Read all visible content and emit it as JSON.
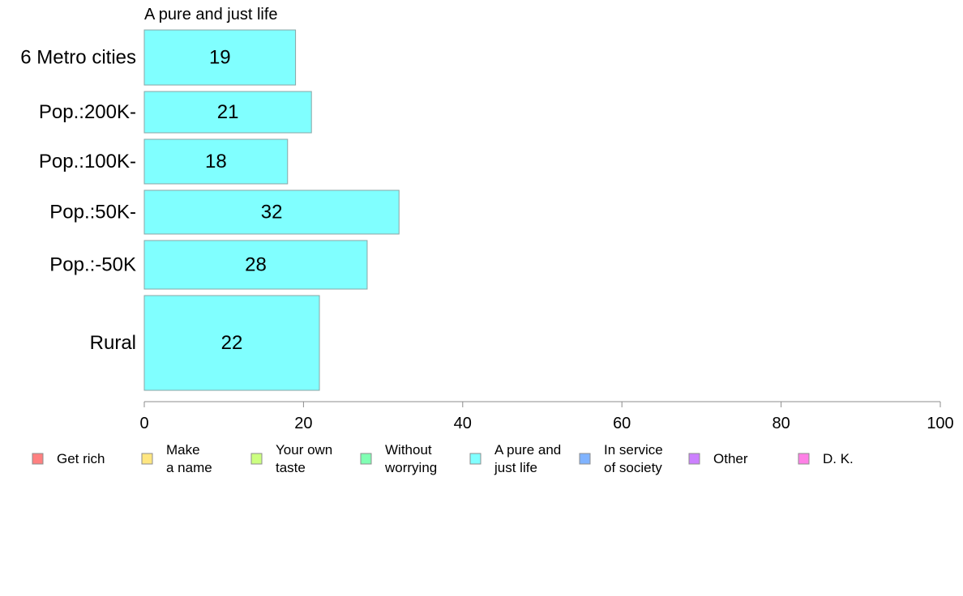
{
  "chart_data": {
    "type": "bar",
    "orientation": "horizontal",
    "title": "A pure and just life",
    "categories": [
      "6 Metro cities",
      "Pop.:200K-",
      "Pop.:100K-",
      "Pop.:50K-",
      "Pop.:-50K",
      "Rural"
    ],
    "values": [
      19,
      21,
      18,
      32,
      28,
      22
    ],
    "value_labels": [
      "19",
      "21",
      "18",
      "32",
      "28",
      "22"
    ],
    "xlim": [
      0,
      100
    ],
    "x_ticks": [
      0,
      20,
      40,
      60,
      80,
      100
    ],
    "x_tick_labels": [
      "0",
      "20",
      "40",
      "60",
      "80",
      "100"
    ],
    "grid": false,
    "bar_color": "#80ffff",
    "legend_position": "bottom",
    "legend": [
      {
        "lines": [
          "Get rich"
        ],
        "color": "#ff8080"
      },
      {
        "lines": [
          "Make",
          "a name"
        ],
        "color": "#ffe680"
      },
      {
        "lines": [
          "Your own",
          "taste"
        ],
        "color": "#ccff80"
      },
      {
        "lines": [
          "Without",
          "worrying"
        ],
        "color": "#80ffb3"
      },
      {
        "lines": [
          "A pure and",
          "just life"
        ],
        "color": "#80ffff"
      },
      {
        "lines": [
          "In service",
          "of society"
        ],
        "color": "#80b3ff"
      },
      {
        "lines": [
          "Other"
        ],
        "color": "#cc80ff"
      },
      {
        "lines": [
          "D. K."
        ],
        "color": "#ff80e6"
      }
    ]
  }
}
